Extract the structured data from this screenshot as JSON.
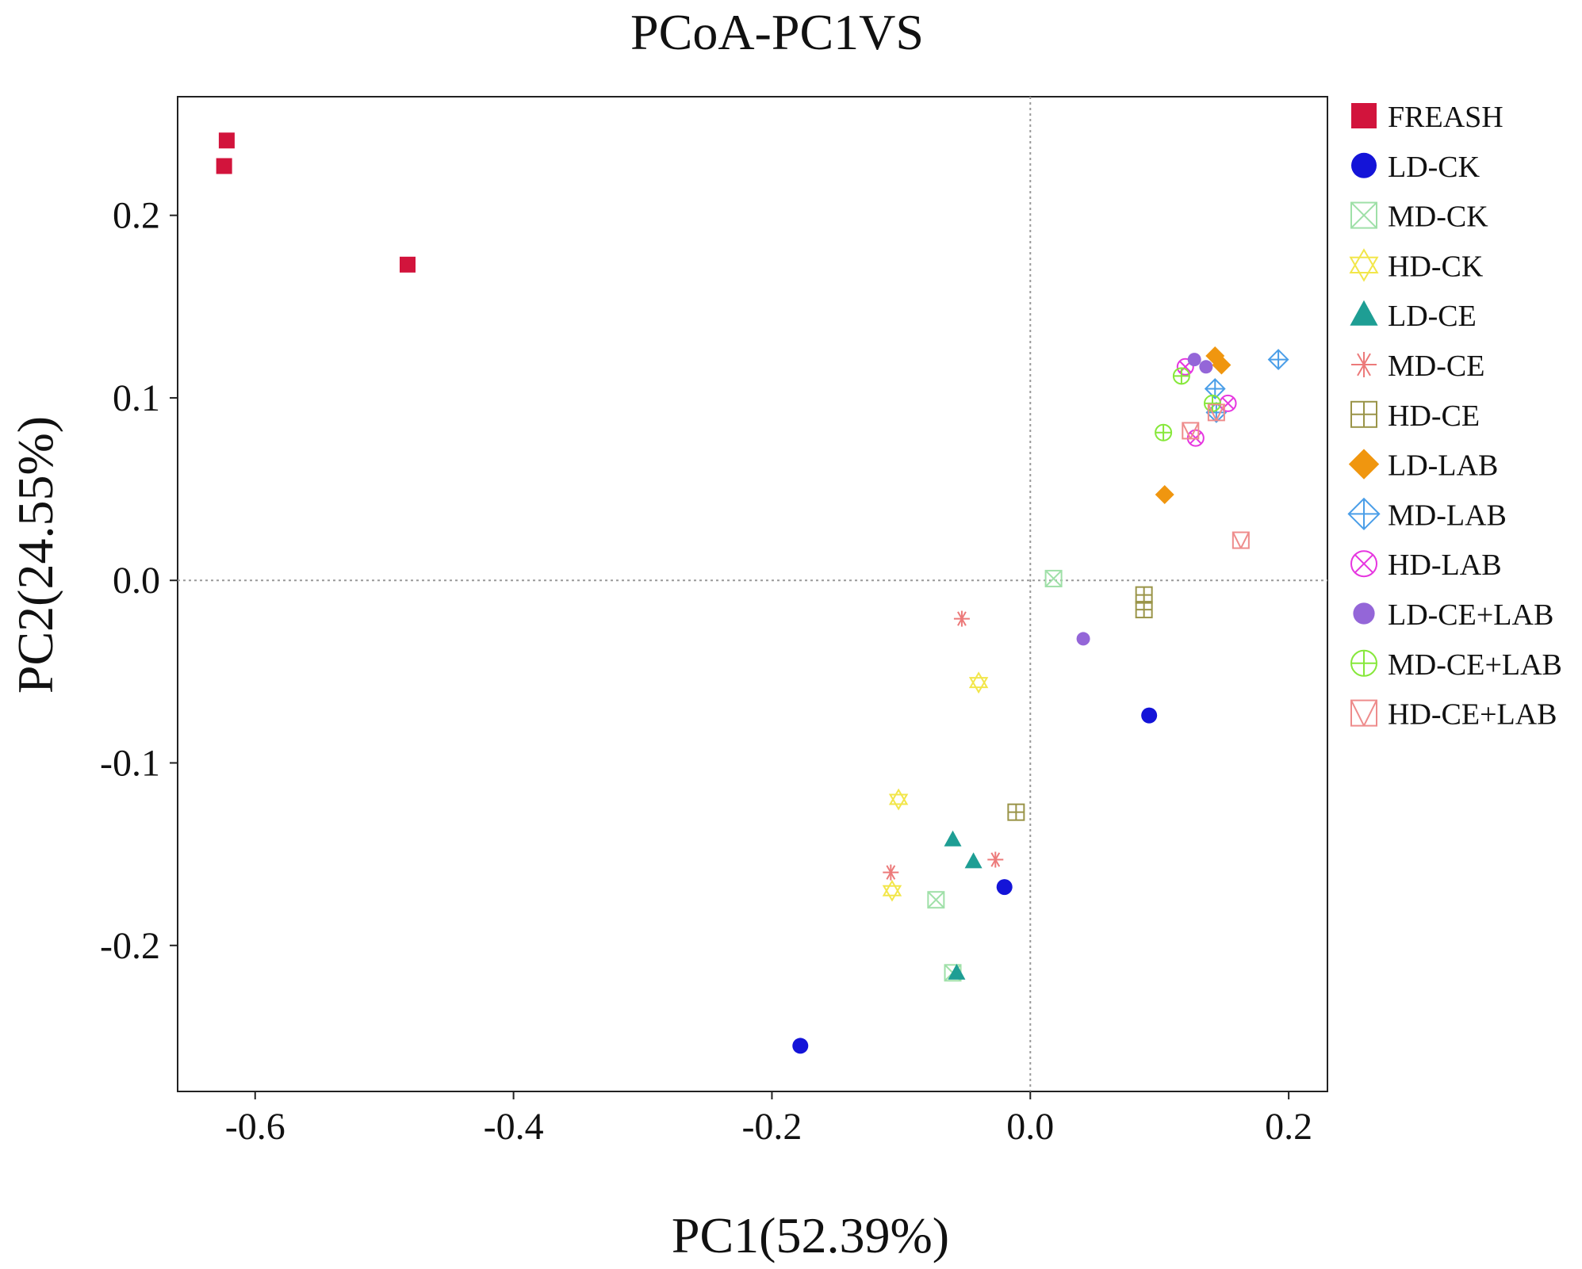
{
  "chart_data": {
    "type": "scatter",
    "title": "PCoA-PC1VS",
    "xlabel": "PC1(52.39%)",
    "ylabel": "PC2(24.55%)",
    "xlim": [
      -0.66,
      0.23
    ],
    "ylim": [
      -0.28,
      0.265
    ],
    "xticks": [
      -0.6,
      -0.4,
      -0.2,
      0.0,
      0.2
    ],
    "xtick_labels": [
      "-0.6",
      "-0.4",
      "-0.2",
      "0.0",
      "0.2"
    ],
    "yticks": [
      -0.2,
      -0.1,
      0.0,
      0.1,
      0.2
    ],
    "ytick_labels": [
      "-0.2",
      "-0.1",
      "0.0",
      "0.1",
      "0.2"
    ],
    "reference_lines": {
      "x": 0.0,
      "y": 0.0,
      "style": "dotted"
    },
    "legend_position": "right",
    "series": [
      {
        "name": "FREASH",
        "marker": "square-filled",
        "color": "#d2143c",
        "points": [
          [
            -0.622,
            0.241
          ],
          [
            -0.624,
            0.227
          ],
          [
            -0.482,
            0.173
          ]
        ]
      },
      {
        "name": "LD-CK",
        "marker": "circle-filled",
        "color": "#1414d8",
        "points": [
          [
            0.092,
            -0.074
          ],
          [
            -0.02,
            -0.168
          ],
          [
            -0.178,
            -0.255
          ]
        ]
      },
      {
        "name": "MD-CK",
        "marker": "box-x",
        "color": "#9fe0a8",
        "points": [
          [
            0.018,
            0.001
          ],
          [
            -0.073,
            -0.175
          ],
          [
            -0.06,
            -0.215
          ]
        ]
      },
      {
        "name": "HD-CK",
        "marker": "star-of-david",
        "color": "#f2e64a",
        "points": [
          [
            -0.04,
            -0.056
          ],
          [
            -0.102,
            -0.12
          ],
          [
            -0.107,
            -0.17
          ]
        ]
      },
      {
        "name": "LD-CE",
        "marker": "triangle-filled",
        "color": "#1e9e94",
        "points": [
          [
            -0.06,
            -0.142
          ],
          [
            -0.044,
            -0.154
          ],
          [
            -0.057,
            -0.215
          ]
        ]
      },
      {
        "name": "MD-CE",
        "marker": "asterisk",
        "color": "#ec7a7a",
        "points": [
          [
            -0.053,
            -0.021
          ],
          [
            -0.108,
            -0.16
          ],
          [
            -0.027,
            -0.153
          ]
        ]
      },
      {
        "name": "HD-CE",
        "marker": "box-plus",
        "color": "#9a9448",
        "points": [
          [
            -0.011,
            -0.127
          ],
          [
            0.088,
            -0.008
          ],
          [
            0.088,
            -0.016
          ]
        ]
      },
      {
        "name": "LD-LAB",
        "marker": "diamond-filled",
        "color": "#f0960f",
        "points": [
          [
            0.143,
            0.123
          ],
          [
            0.148,
            0.118
          ],
          [
            0.104,
            0.047
          ]
        ]
      },
      {
        "name": "MD-LAB",
        "marker": "diamond-plus",
        "color": "#4a9ee8",
        "points": [
          [
            0.192,
            0.121
          ],
          [
            0.143,
            0.105
          ],
          [
            0.144,
            0.092
          ]
        ]
      },
      {
        "name": "HD-LAB",
        "marker": "circle-x",
        "color": "#e636e0",
        "points": [
          [
            0.12,
            0.117
          ],
          [
            0.153,
            0.097
          ],
          [
            0.128,
            0.078
          ]
        ]
      },
      {
        "name": "LD-CE+LAB",
        "marker": "circle-filled-small",
        "color": "#9466d8",
        "points": [
          [
            0.127,
            0.121
          ],
          [
            0.136,
            0.117
          ],
          [
            0.041,
            -0.032
          ]
        ]
      },
      {
        "name": "MD-CE+LAB",
        "marker": "circle-plus",
        "color": "#86e83a",
        "points": [
          [
            0.117,
            0.112
          ],
          [
            0.141,
            0.097
          ],
          [
            0.103,
            0.081
          ]
        ]
      },
      {
        "name": "HD-CE+LAB",
        "marker": "square-v",
        "color": "#ee8c8c",
        "points": [
          [
            0.124,
            0.082
          ],
          [
            0.163,
            0.022
          ],
          [
            0.144,
            0.092
          ]
        ]
      }
    ]
  }
}
